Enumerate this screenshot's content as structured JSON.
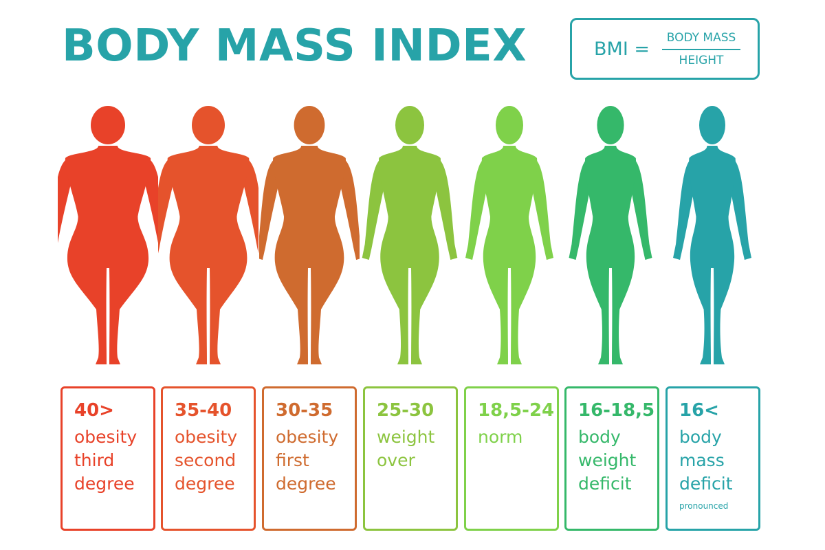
{
  "title": "BODY MASS INDEX",
  "formula": {
    "lhs": "BMI =",
    "numerator": "BODY MASS",
    "denominator": "HEIGHT",
    "color": "#27a3a8"
  },
  "categories": [
    {
      "range": "40>",
      "lines": [
        "obesity",
        "third",
        "degree"
      ],
      "note": "",
      "color": "#e84229",
      "figure_icon": "obese-female-silhouette-icon"
    },
    {
      "range": "35-40",
      "lines": [
        "obesity",
        "second",
        "degree"
      ],
      "note": "",
      "color": "#e5532c",
      "figure_icon": "obese-female-silhouette-icon"
    },
    {
      "range": "30-35",
      "lines": [
        "obesity",
        "first",
        "degree"
      ],
      "note": "",
      "color": "#cf6b2f",
      "figure_icon": "overweight-female-silhouette-icon"
    },
    {
      "range": "25-30",
      "lines": [
        "weight",
        "over"
      ],
      "note": "",
      "color": "#8cc43f",
      "figure_icon": "female-silhouette-icon"
    },
    {
      "range": "18,5-24",
      "lines": [
        "norm"
      ],
      "note": "",
      "color": "#7fd14a",
      "figure_icon": "female-silhouette-icon"
    },
    {
      "range": "16-18,5",
      "lines": [
        "body",
        "weight",
        "deficit"
      ],
      "note": "",
      "color": "#35b86a",
      "figure_icon": "slim-female-silhouette-icon"
    },
    {
      "range": "16<",
      "lines": [
        "body",
        "mass",
        "deficit"
      ],
      "note": "pronounced",
      "color": "#27a3a8",
      "figure_icon": "thin-female-silhouette-icon"
    }
  ]
}
